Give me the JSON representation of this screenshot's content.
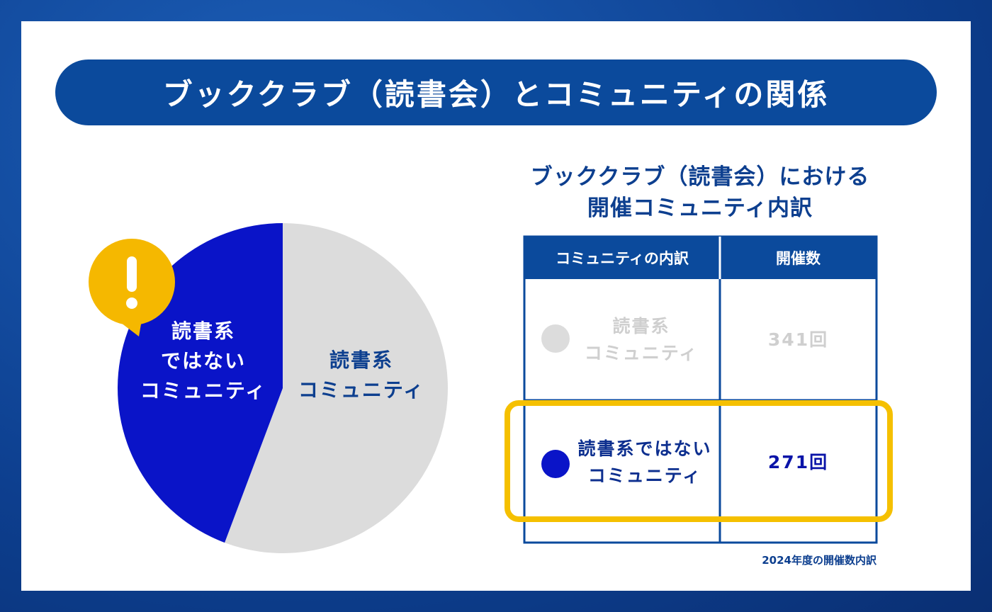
{
  "title": "ブッククラブ（読書会）とコミュニティの関係",
  "chart_data": {
    "type": "pie",
    "categories": [
      "読書系\nコミュニティ",
      "読書系\nではない\nコミュニティ"
    ],
    "values": [
      341,
      271
    ],
    "colors": [
      "#dcdcdc",
      "#0a14c8"
    ]
  },
  "table": {
    "title": "ブッククラブ（読書会）における\n開催コミュニティ内訳",
    "header": [
      "コミュニティの内訳",
      "開催数"
    ],
    "rows": [
      [
        "読書系\nコミュニティ",
        "341回"
      ],
      [
        "読書系ではない\nコミュニティ",
        "271回"
      ]
    ],
    "note": "2024年度の開催数内訳"
  }
}
